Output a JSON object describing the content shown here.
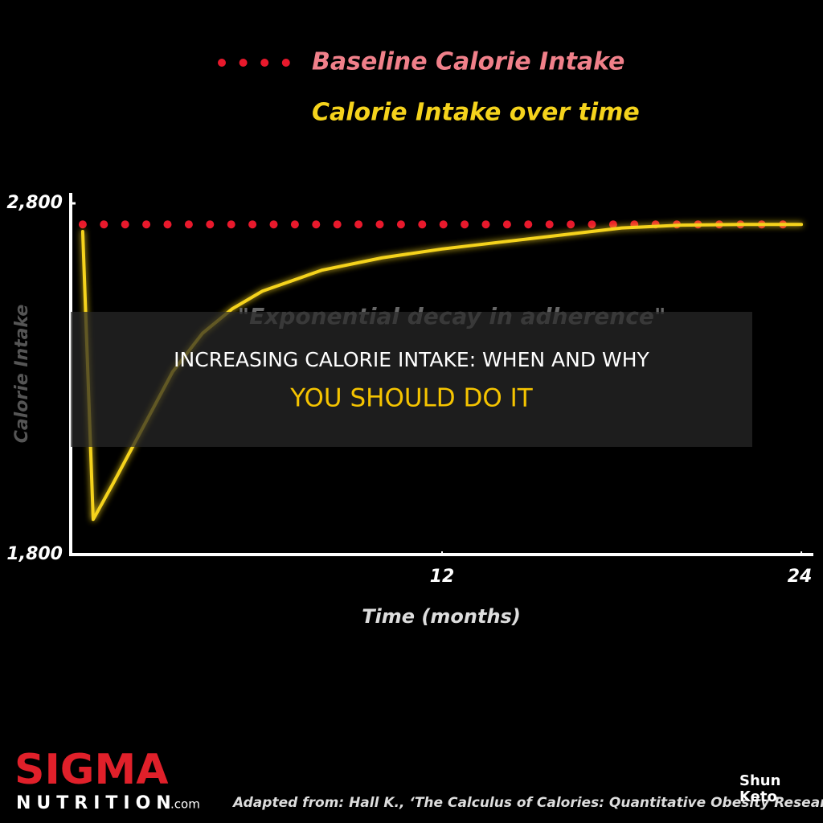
{
  "chart_data": {
    "type": "line",
    "ylabel": "Calorie Intake",
    "xlabel": "Time (months)",
    "annotation": "\"Exponential decay in adherence\"",
    "xlim": [
      -0.4,
      24.4
    ],
    "xticks": [
      12,
      24
    ],
    "ylim": [
      1800,
      2800
    ],
    "yticks": [
      {
        "value": 1800,
        "label": "1,800"
      },
      {
        "value": 2800,
        "label": "2,800"
      }
    ],
    "series": [
      {
        "name": "Baseline Calorie Intake",
        "color": "#e8192c",
        "style": "dotted",
        "x": [
          0,
          24
        ],
        "values": [
          2740,
          2740
        ]
      },
      {
        "name": "Calorie Intake over time",
        "color": "#f5d31c",
        "style": "solid",
        "x": [
          0,
          0.35,
          1,
          2,
          3,
          4,
          5,
          6,
          8,
          10,
          12,
          14,
          16,
          18,
          20,
          22,
          24
        ],
        "values": [
          2720,
          1900,
          2000,
          2160,
          2320,
          2430,
          2500,
          2550,
          2610,
          2645,
          2670,
          2690,
          2710,
          2730,
          2738,
          2740,
          2740
        ]
      }
    ]
  },
  "banner": {
    "line1": "INCREASING CALORIE INTAKE: WHEN AND WHY",
    "line2": "YOU SHOULD DO IT"
  },
  "logo": {
    "brand": "SIGMA",
    "sub": "NUTRITION",
    "domain": ".com"
  },
  "source": "Adapted from: Hall K., ‘The Calculus of Calories: Quantitative Obesity Research’",
  "watermark": {
    "line1": "Shun",
    "line2": "Keto"
  }
}
